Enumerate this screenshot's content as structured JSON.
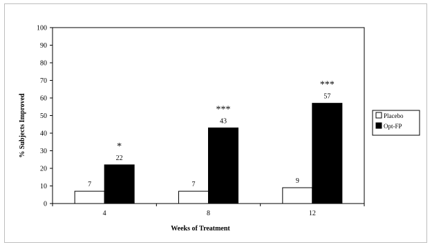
{
  "chart_data": {
    "type": "bar",
    "title": "",
    "xlabel": "Weeks of Treatment",
    "ylabel": "% Subjects Improved",
    "categories": [
      "4",
      "8",
      "12"
    ],
    "series": [
      {
        "name": "Placebo",
        "values": [
          7,
          7,
          9
        ],
        "color": "#ffffff"
      },
      {
        "name": "Opt-FP",
        "values": [
          22,
          43,
          57
        ],
        "color": "#000000"
      }
    ],
    "data_labels": {
      "Placebo": [
        "7",
        "7",
        "9"
      ],
      "Opt-FP": [
        "22",
        "43",
        "57"
      ]
    },
    "significance_markers": [
      "*",
      "***",
      "***"
    ],
    "ylim": [
      0,
      100
    ],
    "yticks": [
      0,
      10,
      20,
      30,
      40,
      50,
      60,
      70,
      80,
      90,
      100
    ],
    "grid": false,
    "legend_position": "right"
  }
}
